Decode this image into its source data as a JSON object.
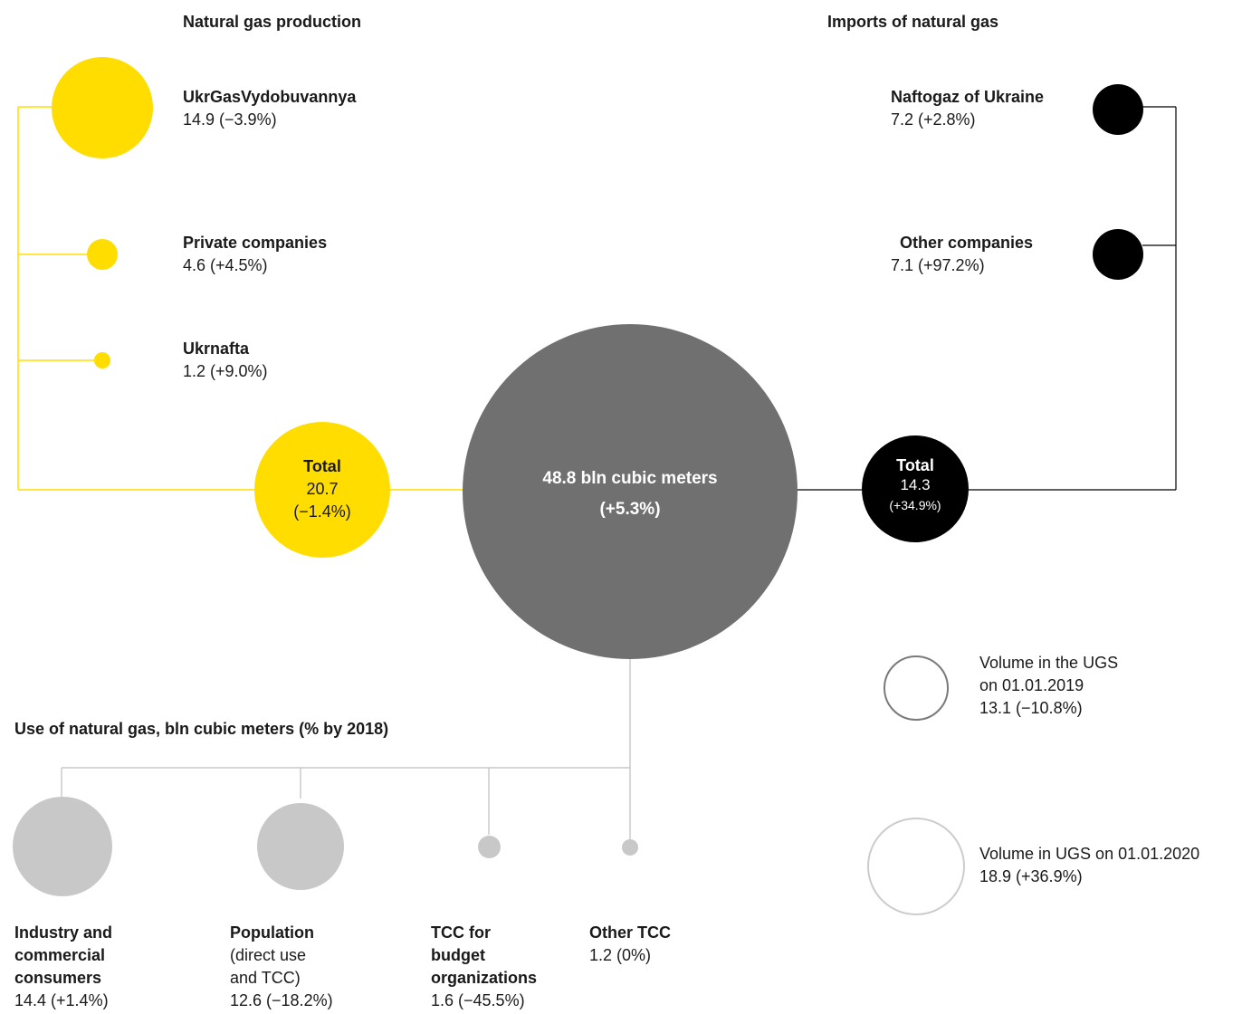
{
  "colors": {
    "production": "#ffdd00",
    "imports": "#000000",
    "total": "#707070",
    "use": "#c8c8c8",
    "ugs2019": "#7a7a7a",
    "ugs2020": "#cccccc"
  },
  "production": {
    "heading": "Natural gas production",
    "items": [
      {
        "name": "UkrGasVydobuvannya",
        "value": "14.9 (−3.9%)"
      },
      {
        "name": "Private companies",
        "value": "4.6 (+4.5%)"
      },
      {
        "name": "Ukrnafta",
        "value": "1.2 (+9.0%)"
      }
    ],
    "total": {
      "label": "Total",
      "value": "20.7",
      "change": "(−1.4%)"
    }
  },
  "imports": {
    "heading": "Imports of natural gas",
    "items": [
      {
        "name": "Naftogaz of Ukraine",
        "value": "7.2 (+2.8%)"
      },
      {
        "name": "Other companies",
        "value": "7.1 (+97.2%)"
      }
    ],
    "total": {
      "label": "Total",
      "value": "14.3",
      "change": "(+34.9%)"
    }
  },
  "center": {
    "line1": "48.8 bln cubic meters",
    "line2": "(+5.3%)"
  },
  "use": {
    "heading": "Use of natural gas, bln cubic meters (% by 2018)",
    "items": [
      {
        "name_lines": [
          "Industry and",
          "commercial",
          "consumers"
        ],
        "sub_lines": [],
        "value": "14.4 (+1.4%)"
      },
      {
        "name_lines": [
          "Population"
        ],
        "sub_lines": [
          "(direct use",
          "and TCC)"
        ],
        "value": "12.6 (−18.2%)"
      },
      {
        "name_lines": [
          "TCC for",
          "budget",
          "organizations"
        ],
        "sub_lines": [],
        "value": "1.6 (−45.5%)"
      },
      {
        "name_lines": [
          "Other TCC"
        ],
        "sub_lines": [],
        "value": "1.2 (0%)"
      }
    ]
  },
  "ugs": [
    {
      "lines": [
        "Volume in the UGS",
        "on 01.01.2019",
        "13.1 (−10.8%)"
      ]
    },
    {
      "lines": [
        "Volume in UGS on 01.01.2020",
        "18.9 (+36.9%)"
      ]
    }
  ]
}
